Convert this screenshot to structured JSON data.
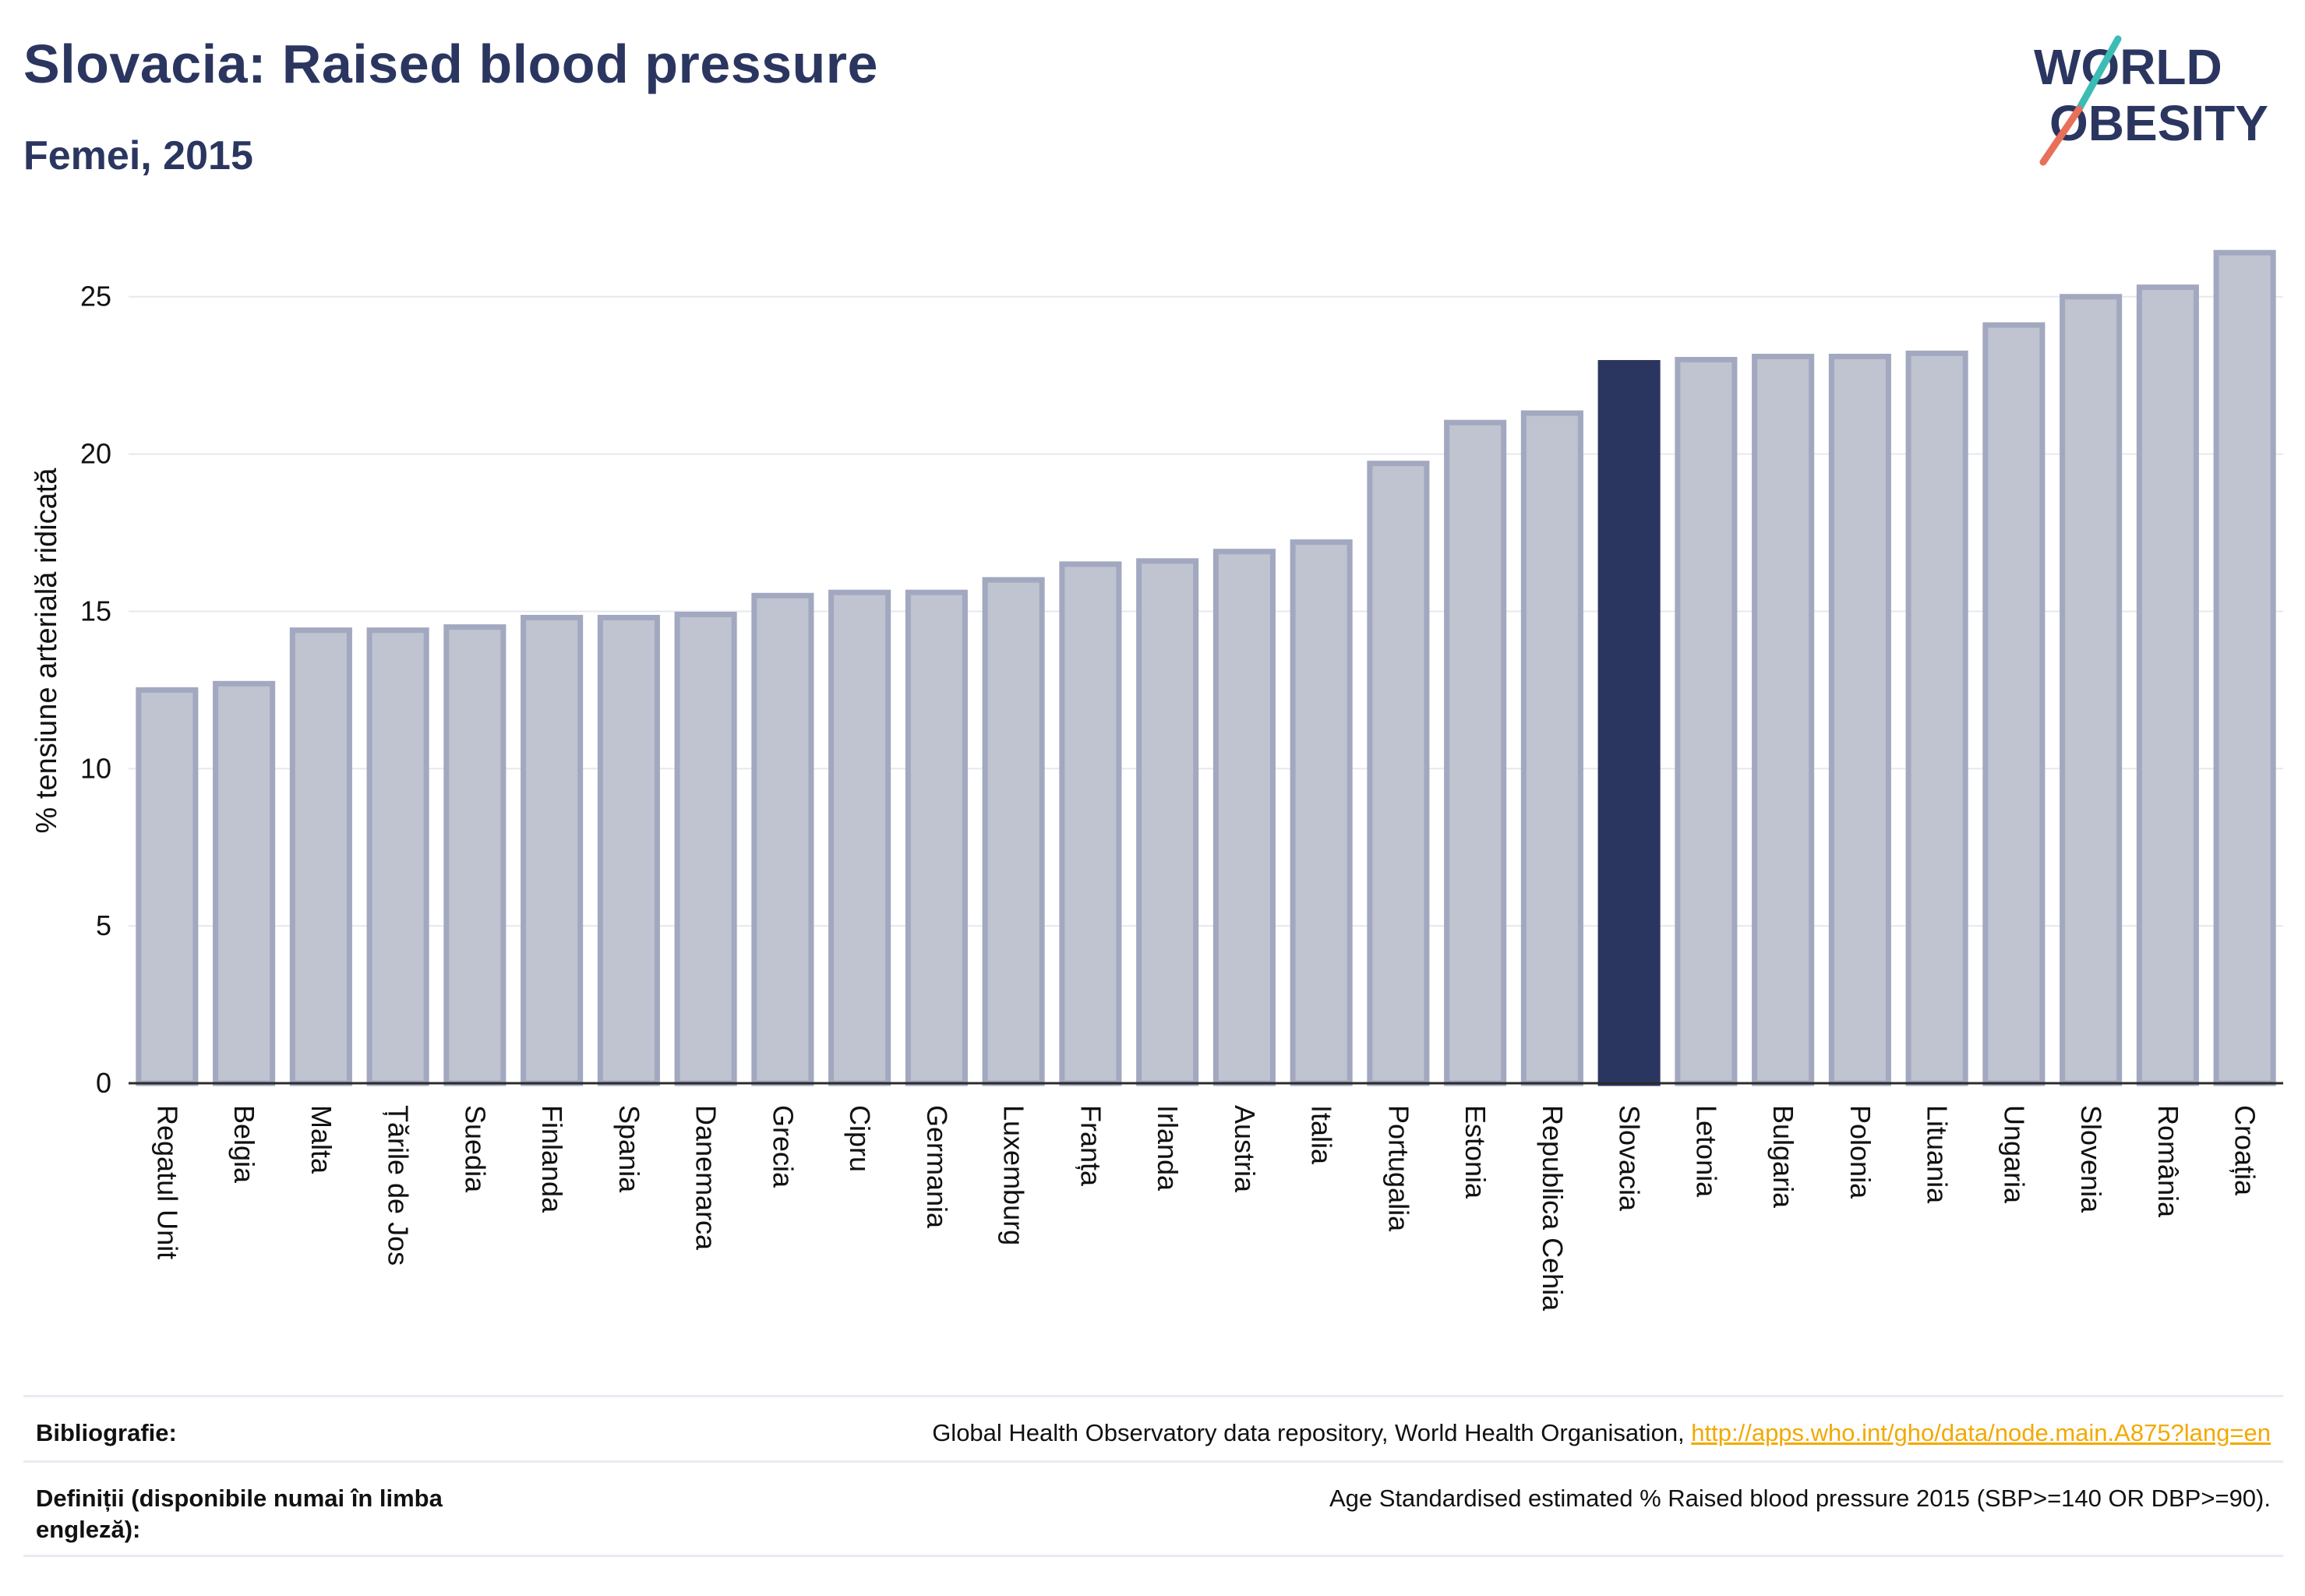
{
  "header": {
    "title": "Slovacia: Raised blood pressure",
    "subtitle": "Femei, 2015"
  },
  "logo": {
    "line1": "WORLD",
    "line2": "OBESITY"
  },
  "colors": {
    "highlight": "#2b3660",
    "bar_fill": "#c0c3d0",
    "bar_stroke": "#a2a8bf",
    "title": "#2b3660",
    "link": "#f2a900",
    "logo_teal": "#3cbcb4",
    "logo_coral": "#e8705a"
  },
  "chart_data": {
    "type": "bar",
    "title": "Slovacia: Raised blood pressure",
    "subtitle": "Femei, 2015",
    "ylabel": "% tensiune arterială ridicată",
    "xlabel": "",
    "ylim": [
      0,
      27
    ],
    "yticks": [
      0,
      5,
      10,
      15,
      20,
      25
    ],
    "grid": true,
    "highlight": "Slovacia",
    "categories": [
      "Regatul Unit",
      "Belgia",
      "Malta",
      "Țările de Jos",
      "Suedia",
      "Finlanda",
      "Spania",
      "Danemarca",
      "Grecia",
      "Cipru",
      "Germania",
      "Luxemburg",
      "Franța",
      "Irlanda",
      "Austria",
      "Italia",
      "Portugalia",
      "Estonia",
      "Republica Cehia",
      "Slovacia",
      "Letonia",
      "Bulgaria",
      "Polonia",
      "Lituania",
      "Ungaria",
      "Slovenia",
      "România",
      "Croația"
    ],
    "values": [
      12.5,
      12.7,
      14.4,
      14.4,
      14.5,
      14.8,
      14.8,
      14.9,
      15.5,
      15.6,
      15.6,
      16.0,
      16.5,
      16.6,
      16.9,
      17.2,
      19.7,
      21.0,
      21.3,
      22.9,
      23.0,
      23.1,
      23.1,
      23.2,
      24.1,
      25.0,
      25.3,
      26.4
    ]
  },
  "footer": {
    "bibliography_label": "Bibliografie:",
    "bibliography_text": "Global Health Observatory data repository, World Health Organisation, ",
    "bibliography_link": "http://apps.who.int/gho/data/node.main.A875?lang=en",
    "definitions_label": "Definiții (disponibile numai în limba engleză):",
    "definitions_text": "Age Standardised estimated % Raised blood pressure 2015 (SBP>=140 OR DBP>=90)."
  }
}
